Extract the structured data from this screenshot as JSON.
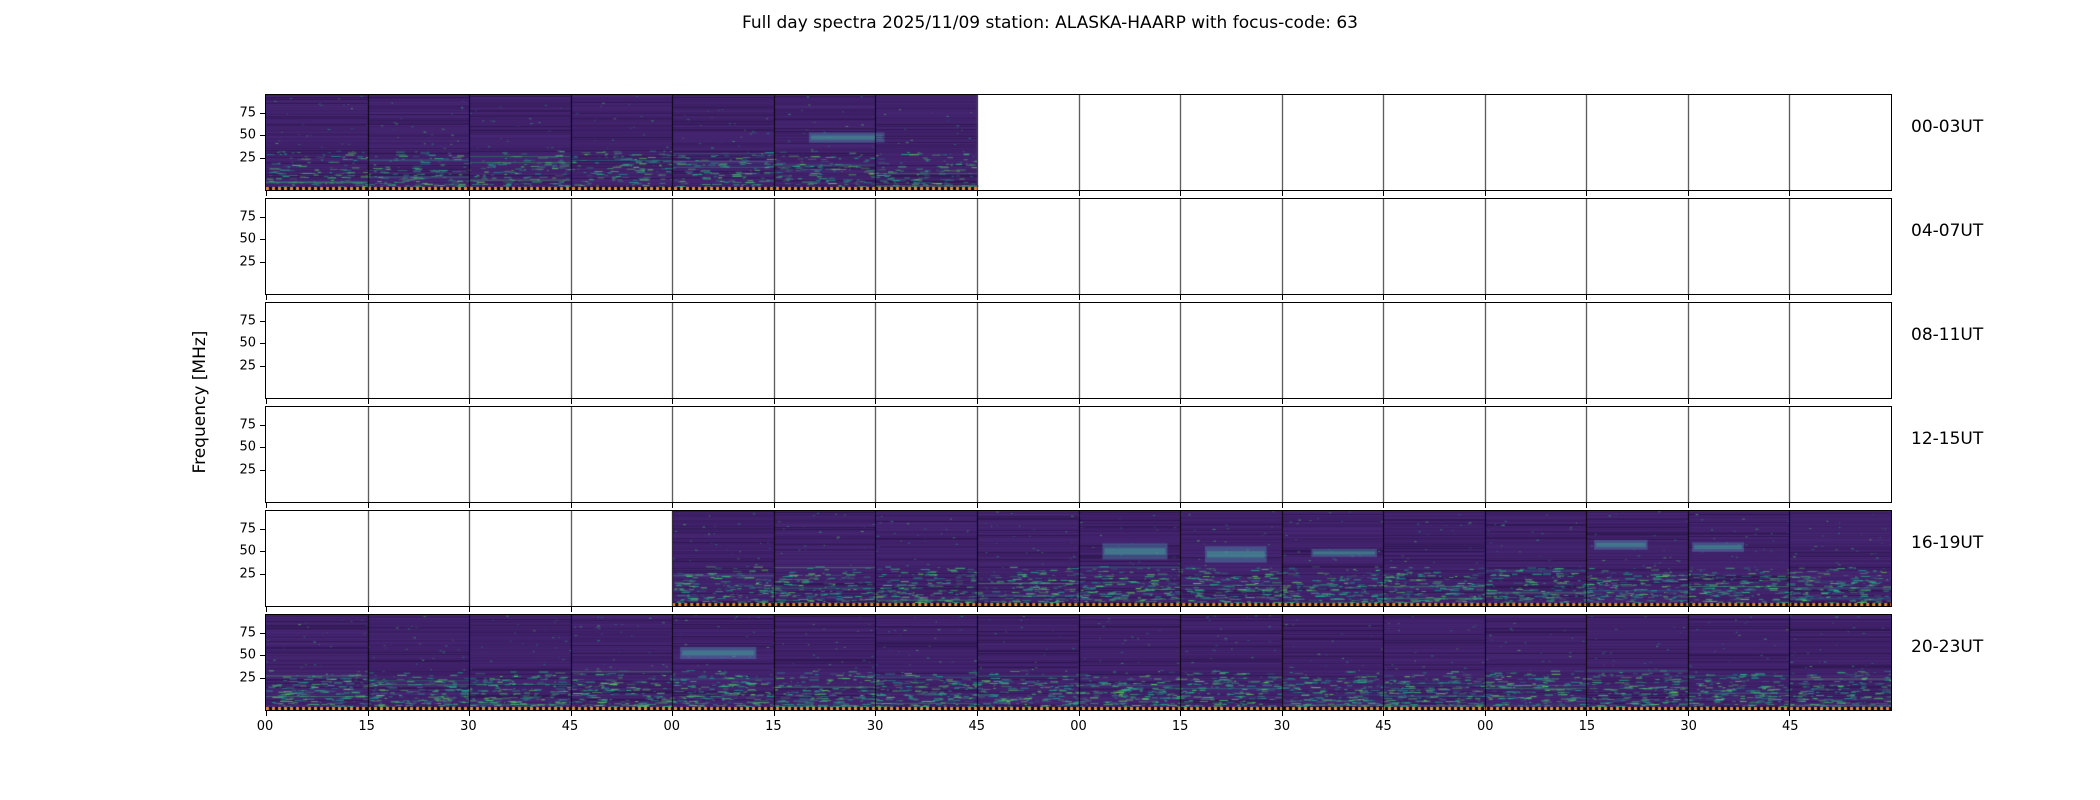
{
  "chart_data": {
    "type": "heatmap",
    "title": "Full day spectra 2025/11/09 station: ALASKA-HAARP with focus-code: 63",
    "ylabel": "Frequency [MHz]",
    "y_ticks": [
      "75",
      "50",
      "25"
    ],
    "x_ticks": [
      "00",
      "15",
      "30",
      "45",
      "00",
      "15",
      "30",
      "45",
      "00",
      "15",
      "30",
      "45",
      "00",
      "15",
      "30",
      "45"
    ],
    "segments_per_row": 16,
    "rows": [
      {
        "label": "00-03UT",
        "filled_segments": [
          0,
          7
        ],
        "patch_chance": 0.08,
        "band_density": 1.0
      },
      {
        "label": "04-07UT",
        "filled_segments": [
          0,
          0
        ],
        "patch_chance": 0.0,
        "band_density": 0.0
      },
      {
        "label": "08-11UT",
        "filled_segments": [
          0,
          0
        ],
        "patch_chance": 0.0,
        "band_density": 0.0
      },
      {
        "label": "12-15UT",
        "filled_segments": [
          0,
          0
        ],
        "patch_chance": 0.0,
        "band_density": 0.0
      },
      {
        "label": "16-19UT",
        "filled_segments": [
          4,
          16
        ],
        "patch_chance": 0.45,
        "band_density": 1.3
      },
      {
        "label": "20-23UT",
        "filled_segments": [
          0,
          16
        ],
        "patch_chance": 0.18,
        "band_density": 1.4
      }
    ],
    "colors": {
      "base": "#3b1e63",
      "striation": "#603a96",
      "teal_palette": [
        "#1fa187",
        "#21918c",
        "#2ab07f",
        "#44bf70",
        "#5ec962"
      ],
      "marker": "#e8862e",
      "border": "#000000"
    }
  }
}
